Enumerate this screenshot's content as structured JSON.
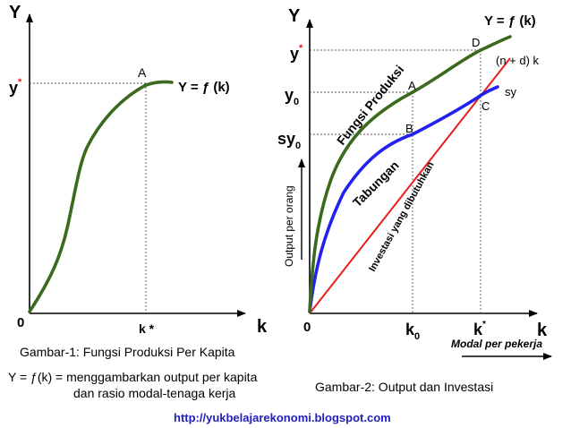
{
  "fig1": {
    "y_axis": "Y",
    "x_axis": "k",
    "origin": "0",
    "y_star": "y",
    "star": "*",
    "point_a": "A",
    "curve_label": "Y = ƒ (k)",
    "k_star": "k *"
  },
  "fig2": {
    "y_axis": "Y",
    "x_axis": "k",
    "origin": "0",
    "y_star": "y",
    "star": "*",
    "y0": "y",
    "sub0": "0",
    "sy0": "sy",
    "k0": "k",
    "k_star": "k",
    "curve_label": "Y = ƒ (k)",
    "nd_label": "(n + d) k",
    "sy_label": "sy",
    "point_a": "A",
    "point_b": "B",
    "point_c": "C",
    "point_d": "D",
    "fungsi": "Fungsi Produksi",
    "tabungan": "Tabungan",
    "investasi": "Investasi yang dibutuhkan",
    "y_title": "Output per orang",
    "x_title": "Modal per pekerja"
  },
  "captions": {
    "fig1": "Gambar-1: Fungsi Produksi Per Kapita",
    "eq_line1": "Y = ƒ(k) = menggambarkan output per kapita",
    "eq_line2": "dan rasio modal-tenaga kerja",
    "fig2": "Gambar-2: Output dan Investasi",
    "url": "http://yukbelajarekonomi.blogspot.com"
  },
  "colors": {
    "production": "#3b6a1e",
    "saving": "#2222ee",
    "investment": "#ee1c1c",
    "star": "#ee1c1c",
    "url": "#1f1fbd"
  }
}
